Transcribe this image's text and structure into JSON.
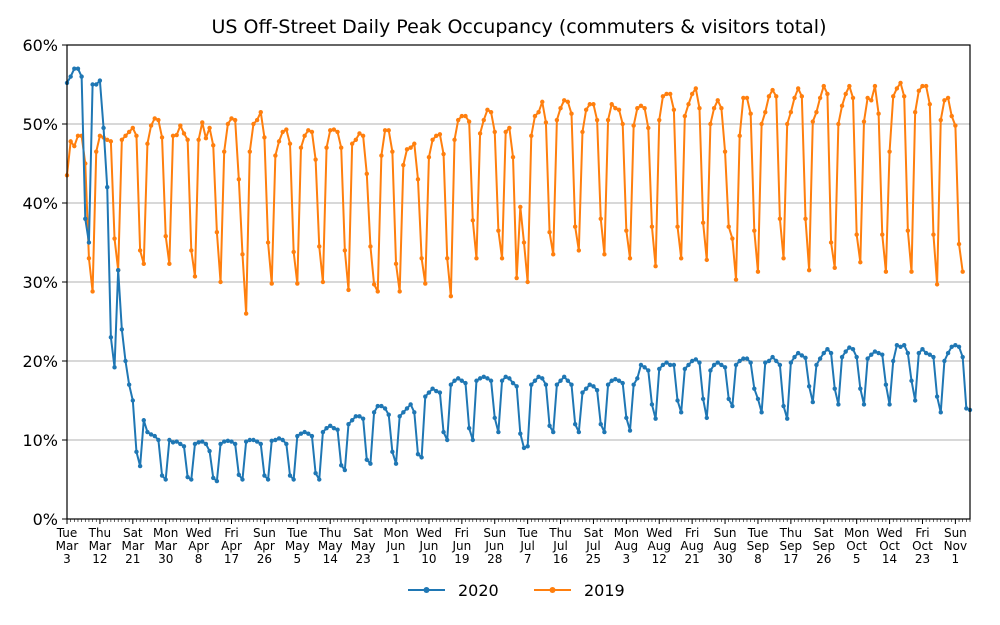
{
  "chart_data": {
    "type": "line",
    "title": "US Off-Street Daily Peak Occupancy (commuters & visitors total)",
    "xlabel": "",
    "ylabel": "",
    "x_start": "Mar 3",
    "x_end": "Nov 1",
    "ylim": [
      0,
      60
    ],
    "y_ticks": [
      "0%",
      "10%",
      "20%",
      "30%",
      "40%",
      "50%",
      "60%"
    ],
    "y_tick_values": [
      0,
      10,
      20,
      30,
      40,
      50,
      60
    ],
    "grid": "horizontal",
    "legend_position": "bottom-center",
    "x_ticks": [
      {
        "day": 0,
        "dow": "Tue",
        "mon": "Mar",
        "dom": "3"
      },
      {
        "day": 9,
        "dow": "Thu",
        "mon": "Mar",
        "dom": "12"
      },
      {
        "day": 18,
        "dow": "Sat",
        "mon": "Mar",
        "dom": "21"
      },
      {
        "day": 27,
        "dow": "Mon",
        "mon": "Mar",
        "dom": "30"
      },
      {
        "day": 36,
        "dow": "Wed",
        "mon": "Apr",
        "dom": "8"
      },
      {
        "day": 45,
        "dow": "Fri",
        "mon": "Apr",
        "dom": "17"
      },
      {
        "day": 54,
        "dow": "Sun",
        "mon": "Apr",
        "dom": "26"
      },
      {
        "day": 63,
        "dow": "Tue",
        "mon": "May",
        "dom": "5"
      },
      {
        "day": 72,
        "dow": "Thu",
        "mon": "May",
        "dom": "14"
      },
      {
        "day": 81,
        "dow": "Sat",
        "mon": "May",
        "dom": "23"
      },
      {
        "day": 90,
        "dow": "Mon",
        "mon": "Jun",
        "dom": "1"
      },
      {
        "day": 99,
        "dow": "Wed",
        "mon": "Jun",
        "dom": "10"
      },
      {
        "day": 108,
        "dow": "Fri",
        "mon": "Jun",
        "dom": "19"
      },
      {
        "day": 117,
        "dow": "Sun",
        "mon": "Jun",
        "dom": "28"
      },
      {
        "day": 126,
        "dow": "Tue",
        "mon": "Jul",
        "dom": "7"
      },
      {
        "day": 135,
        "dow": "Thu",
        "mon": "Jul",
        "dom": "16"
      },
      {
        "day": 144,
        "dow": "Sat",
        "mon": "Jul",
        "dom": "25"
      },
      {
        "day": 153,
        "dow": "Mon",
        "mon": "Aug",
        "dom": "3"
      },
      {
        "day": 162,
        "dow": "Wed",
        "mon": "Aug",
        "dom": "12"
      },
      {
        "day": 171,
        "dow": "Fri",
        "mon": "Aug",
        "dom": "21"
      },
      {
        "day": 180,
        "dow": "Sun",
        "mon": "Aug",
        "dom": "30"
      },
      {
        "day": 189,
        "dow": "Tue",
        "mon": "Sep",
        "dom": "8"
      },
      {
        "day": 198,
        "dow": "Thu",
        "mon": "Sep",
        "dom": "17"
      },
      {
        "day": 207,
        "dow": "Sat",
        "mon": "Sep",
        "dom": "26"
      },
      {
        "day": 216,
        "dow": "Mon",
        "mon": "Oct",
        "dom": "5"
      },
      {
        "day": 225,
        "dow": "Wed",
        "mon": "Oct",
        "dom": "14"
      },
      {
        "day": 234,
        "dow": "Fri",
        "mon": "Oct",
        "dom": "23"
      },
      {
        "day": 243,
        "dow": "Sun",
        "mon": "Nov",
        "dom": "1"
      }
    ],
    "series": [
      {
        "name": "2020",
        "color": "#1f77b4",
        "values": [
          55.2,
          56.0,
          57.0,
          57.0,
          56.0,
          38.0,
          35.0,
          55.0,
          55.0,
          55.5,
          49.5,
          42.0,
          23.0,
          19.2,
          31.5,
          24.0,
          20.0,
          17.0,
          15.0,
          8.5,
          6.7,
          12.5,
          11.0,
          10.7,
          10.5,
          10.0,
          5.5,
          5.0,
          10.0,
          9.7,
          9.8,
          9.5,
          9.2,
          5.3,
          5.0,
          9.5,
          9.7,
          9.8,
          9.5,
          8.6,
          5.2,
          4.8,
          9.5,
          9.8,
          9.9,
          9.8,
          9.5,
          5.6,
          5.0,
          9.8,
          10.0,
          10.0,
          9.8,
          9.5,
          5.5,
          5.0,
          9.9,
          10.0,
          10.2,
          10.0,
          9.5,
          5.5,
          5.0,
          10.5,
          10.8,
          11.0,
          10.8,
          10.5,
          5.8,
          5.0,
          11.0,
          11.5,
          11.8,
          11.5,
          11.3,
          6.8,
          6.2,
          12.0,
          12.5,
          13.0,
          13.0,
          12.7,
          7.5,
          7.0,
          13.5,
          14.3,
          14.3,
          14.0,
          13.2,
          8.5,
          7.0,
          13.0,
          13.5,
          14.0,
          14.5,
          13.5,
          8.2,
          7.8,
          15.5,
          16.0,
          16.5,
          16.2,
          16.0,
          11.0,
          10.0,
          17.0,
          17.5,
          17.8,
          17.5,
          17.2,
          11.5,
          10.0,
          17.5,
          17.8,
          18.0,
          17.8,
          17.5,
          12.8,
          11.0,
          17.5,
          18.0,
          17.8,
          17.2,
          16.8,
          10.8,
          9.0,
          9.2,
          17.0,
          17.5,
          18.0,
          17.8,
          17.0,
          11.8,
          11.0,
          17.0,
          17.5,
          18.0,
          17.5,
          17.0,
          12.0,
          11.0,
          16.0,
          16.5,
          17.0,
          16.8,
          16.3,
          12.0,
          11.0,
          17.0,
          17.5,
          17.7,
          17.5,
          17.2,
          12.8,
          11.2,
          17.0,
          17.8,
          19.5,
          19.2,
          18.8,
          14.5,
          12.7,
          19.0,
          19.5,
          19.8,
          19.5,
          19.5,
          15.0,
          13.5,
          19.0,
          19.5,
          20.0,
          20.2,
          19.8,
          15.2,
          12.8,
          18.8,
          19.5,
          19.8,
          19.5,
          19.2,
          15.2,
          14.3,
          19.5,
          20.0,
          20.3,
          20.3,
          19.8,
          16.5,
          15.2,
          13.5,
          19.8,
          20.0,
          20.5,
          20.0,
          19.5,
          14.3,
          12.7,
          19.8,
          20.5,
          21.0,
          20.7,
          20.4,
          16.8,
          14.8,
          19.5,
          20.3,
          21.0,
          21.5,
          21.0,
          16.5,
          14.5,
          20.5,
          21.2,
          21.7,
          21.5,
          20.5,
          16.5,
          14.5,
          20.3,
          20.8,
          21.2,
          21.0,
          20.8,
          17.0,
          14.5,
          20.0,
          22.0,
          21.8,
          22.0,
          21.0,
          17.5,
          15.0,
          21.0,
          21.5,
          21.0,
          20.8,
          20.5,
          15.5,
          13.5,
          20.0,
          21.0,
          21.8,
          22.0,
          21.8,
          20.5,
          14.0,
          13.8
        ]
      },
      {
        "name": "2019",
        "color": "#ff7f0e",
        "values": [
          43.5,
          47.8,
          47.2,
          48.5,
          48.5,
          45.0,
          33.0,
          28.8,
          46.5,
          48.5,
          48.3,
          48.0,
          47.8,
          35.5,
          31.5,
          48.0,
          48.5,
          49.0,
          49.5,
          48.5,
          34.0,
          32.3,
          47.5,
          49.8,
          50.7,
          50.5,
          48.3,
          35.8,
          32.3,
          48.5,
          48.6,
          49.8,
          48.8,
          48.0,
          34.0,
          30.7,
          48.0,
          50.2,
          48.2,
          49.5,
          47.3,
          36.3,
          30.0,
          46.5,
          50.0,
          50.7,
          50.5,
          43.0,
          33.5,
          26.0,
          46.5,
          50.0,
          50.5,
          51.5,
          48.3,
          35.0,
          29.8,
          46.0,
          47.8,
          49.0,
          49.3,
          47.5,
          33.8,
          29.8,
          47.0,
          48.5,
          49.2,
          49.0,
          45.5,
          34.5,
          30.0,
          47.0,
          49.2,
          49.3,
          49.0,
          47.0,
          34.0,
          29.0,
          47.5,
          48.0,
          48.8,
          48.5,
          43.7,
          34.5,
          29.7,
          28.8,
          46.0,
          49.2,
          49.2,
          46.5,
          32.3,
          28.8,
          44.8,
          46.8,
          47.0,
          47.5,
          43.0,
          33.0,
          29.8,
          45.8,
          48.0,
          48.5,
          48.7,
          46.2,
          33.0,
          28.2,
          48.0,
          50.5,
          51.0,
          51.0,
          50.3,
          37.8,
          33.0,
          48.8,
          50.5,
          51.8,
          51.5,
          49.0,
          36.5,
          33.0,
          49.0,
          49.5,
          45.8,
          30.5,
          39.5,
          35.0,
          30.0,
          48.5,
          51.0,
          51.5,
          52.8,
          50.2,
          36.3,
          33.5,
          50.5,
          52.0,
          53.0,
          52.8,
          51.3,
          37.0,
          34.0,
          49.0,
          51.8,
          52.5,
          52.5,
          50.5,
          38.0,
          33.5,
          50.5,
          52.5,
          52.0,
          51.8,
          50.0,
          36.5,
          33.0,
          49.8,
          52.0,
          52.3,
          52.0,
          49.5,
          37.0,
          32.0,
          50.5,
          53.5,
          53.8,
          53.8,
          51.8,
          37.0,
          33.0,
          51.0,
          52.5,
          53.8,
          54.5,
          52.0,
          37.5,
          32.8,
          50.0,
          52.0,
          53.0,
          52.0,
          46.5,
          37.0,
          35.5,
          30.3,
          48.5,
          53.3,
          53.3,
          51.3,
          36.5,
          31.3,
          50.0,
          51.5,
          53.5,
          54.3,
          53.5,
          38.0,
          33.0,
          50.0,
          51.5,
          53.3,
          54.5,
          53.5,
          38.0,
          31.5,
          50.3,
          51.5,
          53.3,
          54.8,
          53.8,
          35.0,
          31.8,
          50.0,
          52.3,
          53.8,
          54.8,
          53.3,
          36.0,
          32.5,
          50.3,
          53.3,
          53.0,
          54.8,
          51.3,
          36.0,
          31.3,
          46.5,
          53.5,
          54.5,
          55.2,
          53.5,
          36.5,
          31.3,
          51.5,
          54.2,
          54.8,
          54.8,
          52.5,
          36.0,
          29.7,
          50.5,
          53.0,
          53.3,
          51.0,
          49.8,
          34.8,
          31.3
        ]
      }
    ]
  }
}
